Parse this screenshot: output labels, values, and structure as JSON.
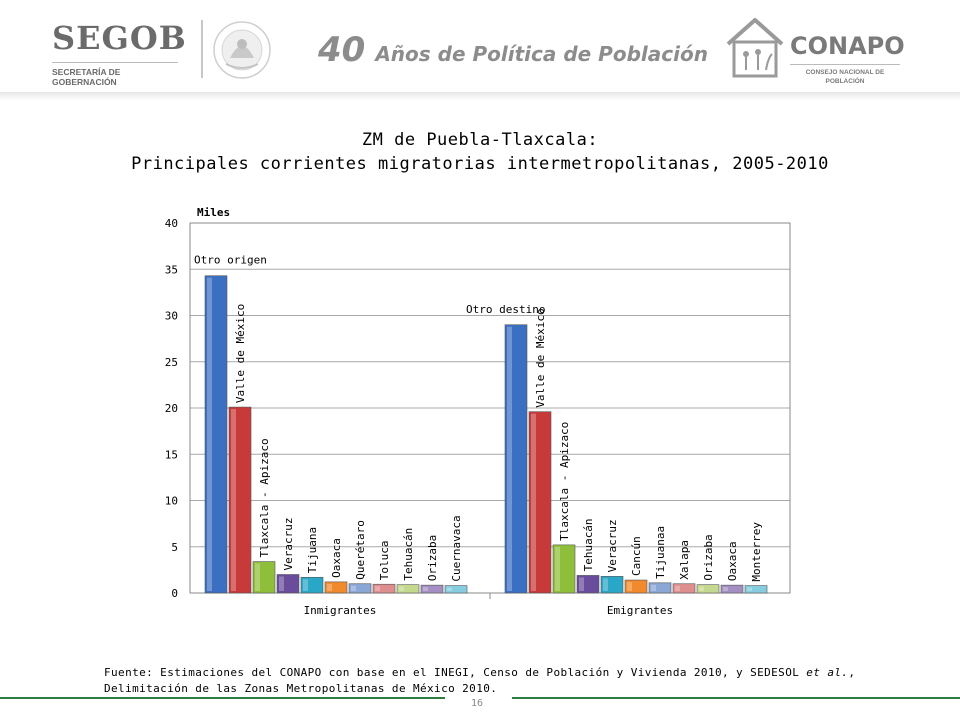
{
  "header": {
    "segob_name": "SEGOB",
    "segob_sub": "SECRETARÍA DE GOBERNACIÓN",
    "seal_text": "ESTADOS UNIDOS MEXICANOS",
    "anniversary_number": "40",
    "anniversary_text": "Años de Política de Población",
    "conapo_name": "CONAPO",
    "conapo_sub_line1": "CONSEJO NACIONAL DE",
    "conapo_sub_line2": "POBLACIÓN"
  },
  "title_line1": "ZM de Puebla-Tlaxcala:",
  "title_line2": "Principales corrientes migratorias intermetropolitanas, 2005-2010",
  "chart_data": {
    "type": "bar",
    "unit_label": "Miles",
    "ylim": [
      0,
      40
    ],
    "yticks": [
      0,
      5,
      10,
      15,
      20,
      25,
      30,
      35,
      40
    ],
    "grid": true,
    "legend": "none",
    "groups": [
      {
        "name": "Inmigrantes",
        "bars": [
          {
            "label": "Otro origen",
            "value": 34.3,
            "color": "#3a6fc2"
          },
          {
            "label": "Valle de México",
            "value": 20.1,
            "color": "#c8393a"
          },
          {
            "label": "Tlaxcala - Apizaco",
            "value": 3.4,
            "color": "#8fbf3a"
          },
          {
            "label": "Veracruz",
            "value": 2.0,
            "color": "#6a4c9c"
          },
          {
            "label": "Tijuana",
            "value": 1.7,
            "color": "#2aa6c7"
          },
          {
            "label": "Oaxaca",
            "value": 1.2,
            "color": "#f08a2c"
          },
          {
            "label": "Querétaro",
            "value": 1.0,
            "color": "#8aa7d6"
          },
          {
            "label": "Toluca",
            "value": 0.95,
            "color": "#de8e8e"
          },
          {
            "label": "Tehuacán",
            "value": 0.9,
            "color": "#c5d98e"
          },
          {
            "label": "Orizaba",
            "value": 0.85,
            "color": "#a48fc2"
          },
          {
            "label": "Cuernavaca",
            "value": 0.8,
            "color": "#86cde0"
          }
        ]
      },
      {
        "name": "Emigrantes",
        "bars": [
          {
            "label": "Otro destino",
            "value": 29.0,
            "color": "#3a6fc2"
          },
          {
            "label": "Valle de México",
            "value": 19.6,
            "color": "#c8393a"
          },
          {
            "label": "Tlaxcala - Apizaco",
            "value": 5.2,
            "color": "#8fbf3a"
          },
          {
            "label": "Tehuacán",
            "value": 1.9,
            "color": "#6a4c9c"
          },
          {
            "label": "Veracruz",
            "value": 1.8,
            "color": "#2aa6c7"
          },
          {
            "label": "Cancún",
            "value": 1.4,
            "color": "#f08a2c"
          },
          {
            "label": "Tijuanaa",
            "value": 1.1,
            "color": "#8aa7d6"
          },
          {
            "label": "Xalapa",
            "value": 1.0,
            "color": "#de8e8e"
          },
          {
            "label": "Orizaba",
            "value": 0.9,
            "color": "#c5d98e"
          },
          {
            "label": "Oaxaca",
            "value": 0.85,
            "color": "#a48fc2"
          },
          {
            "label": "Monterrey",
            "value": 0.8,
            "color": "#86cde0"
          }
        ]
      }
    ]
  },
  "source": {
    "part1": "Fuente: Estimaciones del CONAPO con base en el INEGI, Censo de Población y Vivienda 2010, y SEDESOL ",
    "italic": "et al.",
    "part2": ", Delimitación de las Zonas Metropolitanas de México  2010."
  },
  "page_number": "16"
}
